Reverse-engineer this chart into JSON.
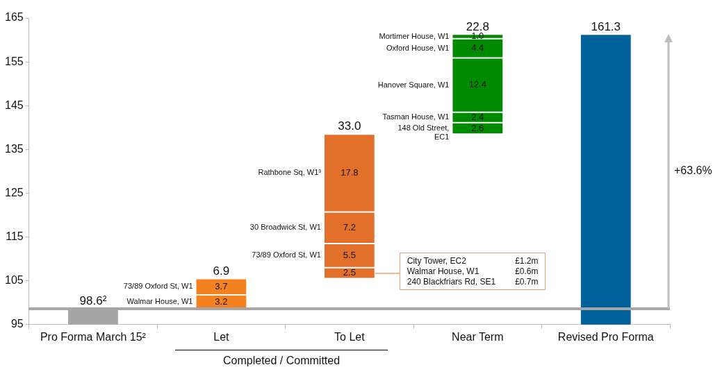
{
  "chart_data": {
    "type": "bar",
    "categories": [
      "Pro Forma March 15²",
      "Let",
      "To Let",
      "Near Term",
      "Revised Pro Forma"
    ],
    "series": [
      {
        "colors": [
          "#a6a6a6",
          "#f58220",
          "#e3702a",
          "#008a00",
          "#00629b"
        ],
        "base": [
          null,
          98.6,
          105.5,
          138.5,
          null
        ],
        "values": [
          98.6,
          3.2,
          2.5,
          2.6,
          161.3
        ],
        "value_labels": [
          null,
          "3.2",
          "2.5",
          "2.6",
          null
        ]
      },
      {
        "colors": [
          "#a6a6a6",
          "#f58220",
          "#e3702a",
          "#008a00",
          "#00629b"
        ],
        "base": [
          null,
          101.8,
          108.0,
          141.1,
          null
        ],
        "values": [
          null,
          3.7,
          5.5,
          2.4,
          null
        ],
        "value_labels": [
          null,
          "3.7",
          "5.5",
          "2.4",
          null
        ]
      },
      {
        "colors": [
          "#a6a6a6",
          "#f58220",
          "#e3702a",
          "#008a00",
          "#00629b"
        ],
        "base": [
          null,
          null,
          113.5,
          143.5,
          null
        ],
        "values": [
          null,
          null,
          7.2,
          12.4,
          null
        ],
        "value_labels": [
          null,
          null,
          "7.2",
          "12.4",
          null
        ]
      },
      {
        "colors": [
          "#a6a6a6",
          "#f58220",
          "#e3702a",
          "#008a00",
          "#00629b"
        ],
        "base": [
          null,
          null,
          120.7,
          155.9,
          null
        ],
        "values": [
          null,
          null,
          17.8,
          4.4,
          null
        ],
        "value_labels": [
          null,
          null,
          "17.8",
          "4.4",
          null
        ]
      },
      {
        "colors": [
          "#a6a6a6",
          "#f58220",
          "#e3702a",
          "#008a00",
          "#00629b"
        ],
        "base": [
          null,
          null,
          null,
          160.3,
          null
        ],
        "values": [
          null,
          null,
          null,
          1.0,
          null
        ],
        "value_labels": [
          null,
          null,
          null,
          "1.0",
          null
        ]
      }
    ],
    "ylim": [
      95,
      165
    ],
    "yticks": [
      95,
      105,
      115,
      125,
      135,
      145,
      155,
      165
    ],
    "grid": false,
    "legend": false,
    "ref_lines": [
      {
        "axis": "y",
        "value": 98.6,
        "color": "#a6a6a6"
      }
    ],
    "annotations": [
      {
        "text": "98.6²",
        "x": "Pro Forma March 15²",
        "y": 98.6
      },
      {
        "text": "6.9",
        "x": "Let",
        "y": 105.5
      },
      {
        "text": "33.0",
        "x": "To Let",
        "y": 138.5
      },
      {
        "text": "22.8",
        "x": "Near Term",
        "y": 161.3
      },
      {
        "text": "161.3",
        "x": "Revised Pro Forma",
        "y": 161.3
      },
      "Walmar House, W1",
      "73/89 Oxford St, W1",
      "73/89 Oxford St, W1",
      "30 Broadwick St, W1",
      "Rathbone Sq, W1³",
      "148 Old Street,\nEC1",
      "Tasman House, W1",
      "Hanover Square, W1",
      "Oxford House, W1",
      "Mortimer House, W1",
      "City Tower, EC2",
      "£1.2m",
      "Walmar House, W1",
      "£0.6m",
      "240 Blackfriars Rd, SE1",
      "£0.7m",
      "+63.6%",
      "Completed / Committed"
    ]
  }
}
